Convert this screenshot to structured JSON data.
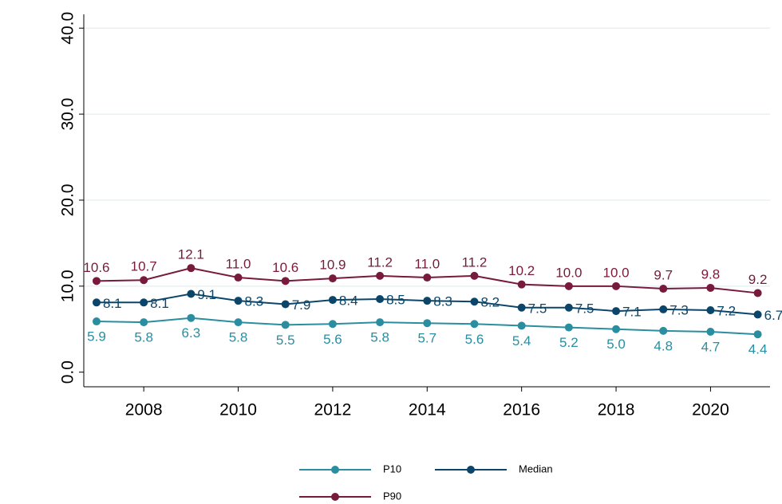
{
  "chart_data": {
    "type": "line",
    "x": [
      2007,
      2008,
      2009,
      2010,
      2011,
      2012,
      2013,
      2014,
      2015,
      2016,
      2017,
      2018,
      2019,
      2020,
      2021
    ],
    "series": [
      {
        "name": "P10",
        "color": "#2a8ea0",
        "label_position": "below",
        "values": [
          5.9,
          5.8,
          6.3,
          5.8,
          5.5,
          5.6,
          5.8,
          5.7,
          5.6,
          5.4,
          5.2,
          5.0,
          4.8,
          4.7,
          4.4
        ],
        "value_labels": [
          "5.9",
          "5.8",
          "6.3",
          "5.8",
          "5.5",
          "5.6",
          "5.8",
          "5.7",
          "5.6",
          "5.4",
          "5.2",
          "5.0",
          "4.8",
          "4.7",
          "4.4"
        ]
      },
      {
        "name": "Median",
        "color": "#0b466a",
        "label_position": "right",
        "values": [
          8.1,
          8.1,
          9.1,
          8.3,
          7.9,
          8.4,
          8.5,
          8.3,
          8.2,
          7.5,
          7.5,
          7.1,
          7.3,
          7.2,
          6.7
        ],
        "value_labels": [
          "8.1",
          "8.1",
          "9.1",
          "8.3",
          "7.9",
          "8.4",
          "8.5",
          "8.3",
          "8.2",
          "7.5",
          "7.5",
          "7.1",
          "7.3",
          "7.2",
          "6.7"
        ]
      },
      {
        "name": "P90",
        "color": "#781a3c",
        "label_position": "above",
        "values": [
          10.6,
          10.7,
          12.1,
          11.0,
          10.6,
          10.9,
          11.2,
          11.0,
          11.2,
          10.2,
          10.0,
          10.0,
          9.7,
          9.8,
          9.2
        ],
        "value_labels": [
          "10.6",
          "10.7",
          "12.1",
          "11.0",
          "10.6",
          "10.9",
          "11.2",
          "11.0",
          "11.2",
          "10.2",
          "10.0",
          "10.0",
          "9.7",
          "9.8",
          "9.2"
        ]
      }
    ],
    "xlim": [
      2006.73,
      2021.26
    ],
    "xticks": [
      2008,
      2010,
      2012,
      2014,
      2016,
      2018,
      2020
    ],
    "ylim": [
      -1.7,
      41.6
    ],
    "yticks": [
      {
        "value": 0,
        "label": "0.0"
      },
      {
        "value": 10,
        "label": "10.0"
      },
      {
        "value": 20,
        "label": "20.0"
      },
      {
        "value": 30,
        "label": "30.0"
      },
      {
        "value": 40,
        "label": "40.0"
      }
    ],
    "grid": true,
    "legend": "bottom"
  }
}
